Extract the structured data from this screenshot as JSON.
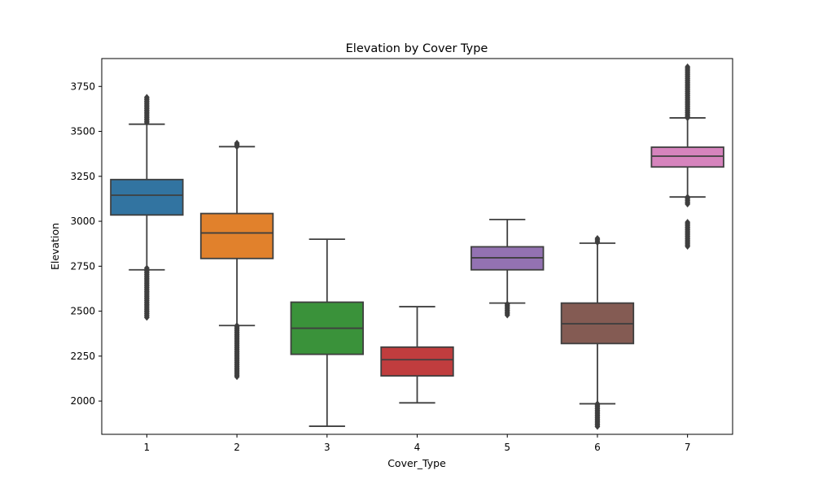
{
  "chart_data": {
    "type": "box",
    "title": "Elevation by Cover Type",
    "xlabel": "Cover_Type",
    "ylabel": "Elevation",
    "categories": [
      "1",
      "2",
      "3",
      "4",
      "5",
      "6",
      "7"
    ],
    "y_ticks": [
      2000,
      2250,
      2500,
      2750,
      3000,
      3250,
      3500,
      3750
    ],
    "y_tick_labels": [
      "2000",
      "2250",
      "2500",
      "2750",
      "3000",
      "3250",
      "3500",
      "3750"
    ],
    "ylim": [
      1815,
      3905
    ],
    "grid": false,
    "legend": "none",
    "boxes": [
      {
        "category": "1",
        "color": "#3274a1",
        "q1": 3035,
        "median": 3145,
        "q3": 3232,
        "whisker_low": 2730,
        "whisker_high": 3540,
        "outlier_ranges": [
          [
            2465,
            2740
          ],
          [
            3548,
            3690
          ]
        ]
      },
      {
        "category": "2",
        "color": "#e1812c",
        "q1": 2793,
        "median": 2935,
        "q3": 3043,
        "whisker_low": 2420,
        "whisker_high": 3415,
        "outlier_ranges": [
          [
            2135,
            2420
          ],
          [
            3415,
            3435
          ]
        ]
      },
      {
        "category": "3",
        "color": "#3a923a",
        "q1": 2260,
        "median": 2405,
        "q3": 2550,
        "whisker_low": 1860,
        "whisker_high": 2900,
        "outlier_ranges": []
      },
      {
        "category": "4",
        "color": "#c03d3e",
        "q1": 2140,
        "median": 2230,
        "q3": 2300,
        "whisker_low": 1990,
        "whisker_high": 2525,
        "outlier_ranges": []
      },
      {
        "category": "5",
        "color": "#9372b2",
        "q1": 2730,
        "median": 2797,
        "q3": 2858,
        "whisker_low": 2545,
        "whisker_high": 3010,
        "outlier_ranges": [
          [
            2478,
            2540
          ]
        ]
      },
      {
        "category": "6",
        "color": "#845b53",
        "q1": 2320,
        "median": 2430,
        "q3": 2545,
        "whisker_low": 1985,
        "whisker_high": 2878,
        "outlier_ranges": [
          [
            1858,
            1985
          ],
          [
            2882,
            2905
          ]
        ]
      },
      {
        "category": "7",
        "color": "#d684bd",
        "q1": 3302,
        "median": 3362,
        "q3": 3412,
        "whisker_low": 3135,
        "whisker_high": 3575,
        "outlier_ranges": [
          [
            2860,
            2995
          ],
          [
            3095,
            3135
          ],
          [
            3575,
            3860
          ]
        ]
      }
    ]
  }
}
